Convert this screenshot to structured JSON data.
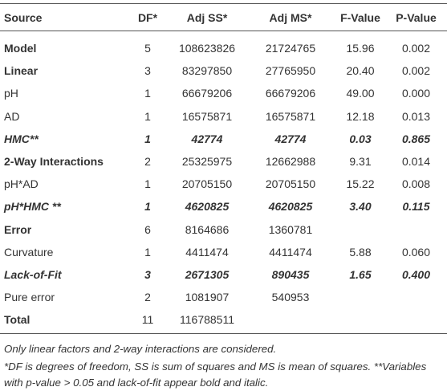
{
  "table": {
    "header": [
      "Source",
      "DF*",
      "Adj SS*",
      "Adj MS*",
      "F-Value",
      "P-Value"
    ],
    "rows": [
      {
        "style": "bold",
        "cells": [
          "Model",
          "5",
          "108623826",
          "21724765",
          "15.96",
          "0.002"
        ]
      },
      {
        "style": "bold",
        "cells": [
          "Linear",
          "3",
          "83297850",
          "27765950",
          "20.40",
          "0.002"
        ]
      },
      {
        "cells": [
          "pH",
          "1",
          "66679206",
          "66679206",
          "49.00",
          "0.000"
        ]
      },
      {
        "cells": [
          "AD",
          "1",
          "16575871",
          "16575871",
          "12.18",
          "0.013"
        ]
      },
      {
        "style": "bold-italic",
        "cells": [
          "HMC**",
          "1",
          "42774",
          "42774",
          "0.03",
          "0.865"
        ]
      },
      {
        "style": "bold",
        "cells": [
          "2-Way Interactions",
          "2",
          "25325975",
          "12662988",
          "9.31",
          "0.014"
        ]
      },
      {
        "cells": [
          "pH*AD",
          "1",
          "20705150",
          "20705150",
          "15.22",
          "0.008"
        ]
      },
      {
        "style": "bold-italic",
        "cells": [
          "pH*HMC **",
          "1",
          "4620825",
          "4620825",
          "3.40",
          "0.115"
        ]
      },
      {
        "style": "bold",
        "cells": [
          "Error",
          "6",
          "8164686",
          "1360781"
        ]
      },
      {
        "cells": [
          "Curvature",
          "1",
          "4411474",
          "4411474",
          "5.88",
          "0.060"
        ]
      },
      {
        "style": "bold-italic",
        "cells": [
          "Lack-of-Fit",
          "3",
          "2671305",
          "890435",
          "1.65",
          "0.400"
        ]
      },
      {
        "cells": [
          "Pure error",
          "2",
          "1081907",
          "540953"
        ]
      },
      {
        "style": "bold",
        "cells": [
          "Total",
          "11",
          "116788511"
        ]
      }
    ]
  },
  "footnotes": [
    "Only linear factors and 2-way interactions are considered.",
    "*DF is degrees of freedom, SS is sum of squares and MS is mean of squares. **Variables with p-value > 0.05 and lack-of-fit appear bold and italic."
  ]
}
